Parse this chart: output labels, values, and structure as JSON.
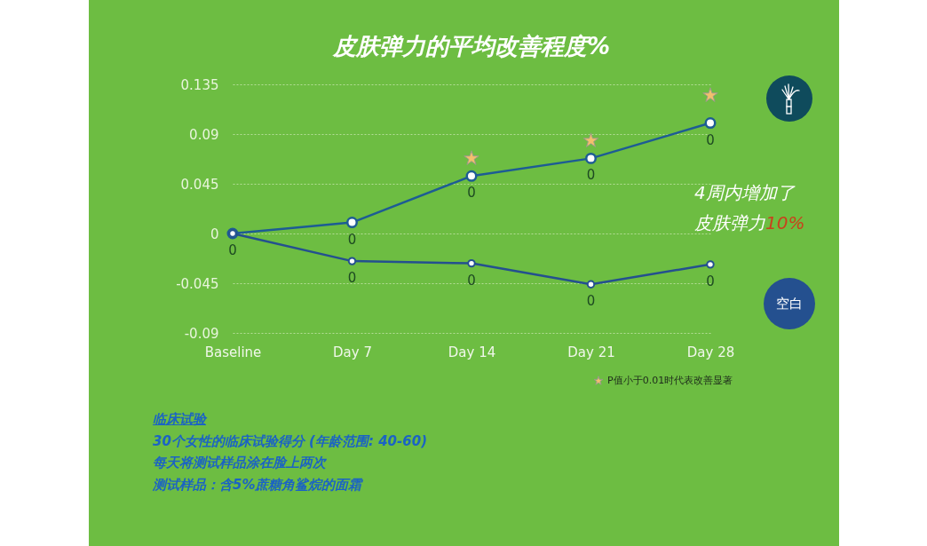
{
  "chart_data": {
    "type": "line",
    "title": "皮肤弹力的平均改善程度%",
    "categories": [
      "Baseline",
      "Day 7",
      "Day 14",
      "Day 21",
      "Day 28"
    ],
    "series": [
      {
        "color": "#1d5c94",
        "values": [
          0,
          0.01,
          0.052,
          0.068,
          0.1
        ],
        "value_labels": [
          "0",
          "0",
          "0",
          "0",
          "0"
        ]
      },
      {
        "name": "空白",
        "color": "#24508f",
        "values": [
          0,
          -0.025,
          -0.027,
          -0.046,
          -0.028
        ],
        "value_labels": [
          null,
          "0",
          "0",
          "0",
          "0"
        ]
      },
      {
        "name": "P值小于0.01时代表改善显著",
        "type": "scatter",
        "marker": "star",
        "color": "#f2c06c",
        "x": [
          "Day 14",
          "Day 21",
          "Day 28"
        ],
        "values": [
          0.068,
          0.084,
          0.125
        ]
      }
    ],
    "ylim": [
      -0.09,
      0.135
    ],
    "yticks": [
      -0.09,
      -0.045,
      0,
      0.045,
      0.09,
      0.135
    ],
    "grid": "y",
    "legend": "bottom right",
    "marker": "circle",
    "annotations": [
      "4周内增加了皮肤弹力10%",
      "临床试验",
      "30个女性的临床试验得分 (年龄范围: 40-60)",
      "每天将测试样品涂在脸上两次",
      "测试样品：含5%蔗糖角鲨烷的面霜"
    ]
  }
}
